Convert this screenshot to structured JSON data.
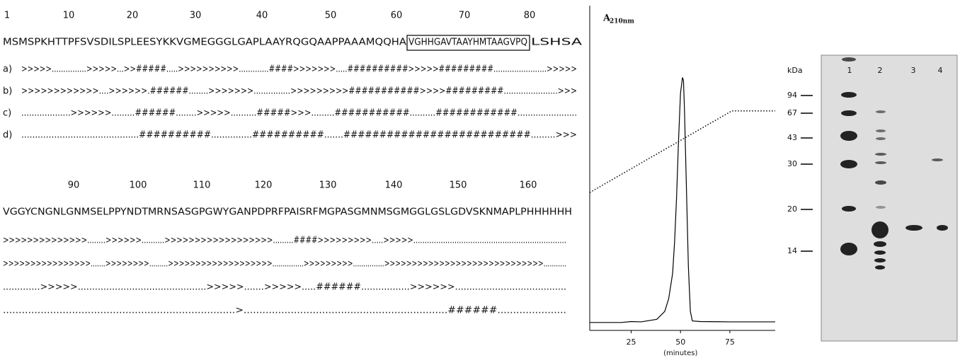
{
  "sequence_panel": {
    "blocks": [
      {
        "ruler": [
          1,
          10,
          20,
          30,
          40,
          50,
          60,
          70,
          80
        ],
        "sequence_before": "MSMSPKHTTPFSVSDILSPLEESYKKVGMEGGGLGAPLAAYRQGQAAPPAAAMQQHA",
        "sequence_boxed": "VGHHGAVTAAYHMTAAGVPQ",
        "sequence_after": "LSHSA",
        "predictions": [
          {
            "label": "a)",
            "line": ">>>>>...............>>>>>...>>#####.....>>>>>>>>>>.............####>>>>>>>.....##########>>>>>#########.......................>>>>>"
          },
          {
            "label": "b)",
            "line": ">>>>>>>>>>>>....>>>>>>.######........>>>>>>>...............>>>>>>>>>###########>>>>#########......................>>>"
          },
          {
            "label": "c)",
            "line": "...................>>>>>>.........######........>>>>>..........#####>>>.........###########..........############......................."
          },
          {
            "label": "d)",
            "line": "...........................................##########...............##########.......##########################.........>>>"
          }
        ]
      },
      {
        "ruler": [
          90,
          100,
          110,
          120,
          130,
          140,
          150,
          160
        ],
        "sequence": "VGGYCNGNLGNMSELPPYNDTMRNSASGPGWYGANPDPRFPAISRFMGPASGMNMSGMGGLGSLGDVSKNMAPLPHHHHHH",
        "predictions": [
          ">>>>>>>>>>>>>>........>>>>>>..........>>>>>>>>>>>>>>>>>>.........####>>>>>>>>>.....>>>>>...................................................................",
          ">>>>>>>>>>>>>>>>.......>>>>>>>>.........>>>>>>>>>>>>>>>>>>>...............>>>>>>>>>...............>>>>>>>>>>>>>>>>>>>>>>>>>>>>>...........",
          ".............>>>>>.............................................>>>>>.......>>>>>.....######.................>>>>>>.......................................",
          "..........................................................................>.................................................................######......................"
        ]
      }
    ]
  },
  "chart_data": {
    "type": "line",
    "ylabel": "A",
    "ylabel_subscript": "210nm",
    "xlabel": "(minutes)",
    "xlim": [
      4,
      98
    ],
    "xticks": [
      25,
      50,
      75
    ],
    "ylim": [
      0,
      100
    ],
    "series": [
      {
        "color": "#000000",
        "style": "solid",
        "x": [
          4,
          20,
          25,
          30,
          38,
          42,
          44,
          46,
          47,
          48,
          49,
          50,
          51,
          51.5,
          52,
          53,
          54,
          55,
          56,
          60,
          75,
          98
        ],
        "values": [
          2.5,
          2.5,
          2.8,
          2.7,
          3.5,
          6,
          10,
          18,
          28,
          42,
          60,
          75,
          80,
          79,
          70,
          45,
          20,
          6,
          3,
          2.8,
          2.7,
          2.7
        ]
      },
      {
        "color": "#000000",
        "style": "dotted",
        "x": [
          4,
          76,
          98
        ],
        "values": [
          43.6,
          69.4,
          69.4
        ]
      }
    ]
  },
  "gel": {
    "unit_label": "kDa",
    "lanes": [
      "1",
      "2",
      "3",
      "4"
    ],
    "markers": [
      94,
      67,
      43,
      30,
      20,
      14
    ]
  }
}
